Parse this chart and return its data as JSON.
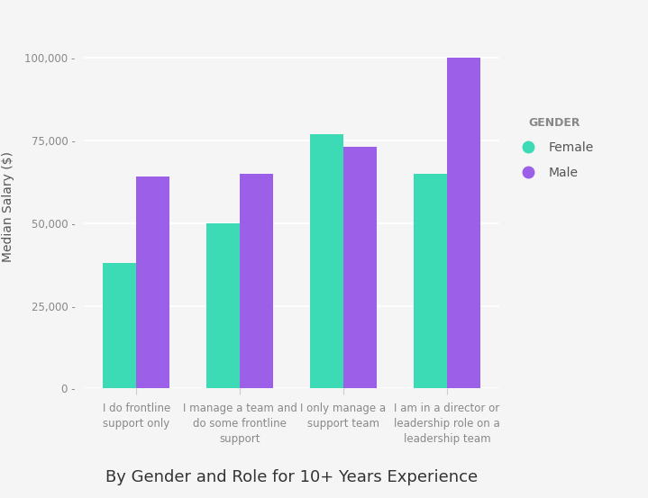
{
  "categories": [
    "I do frontline\nsupport only",
    "I manage a team and\ndo some frontline\nsupport",
    "I only manage a\nsupport team",
    "I am in a director or\nleadership role on a\nleadership team"
  ],
  "female_values": [
    38000,
    50000,
    77000,
    65000
  ],
  "male_values": [
    64000,
    65000,
    73000,
    100000
  ],
  "female_color": "#3DDBB5",
  "male_color": "#9B5FE8",
  "ylabel": "Median Salary ($)",
  "xlabel": "By Gender and Role for 10+ Years Experience",
  "legend_title": "GENDER",
  "legend_female": "Female",
  "legend_male": "Male",
  "ylim": [
    0,
    110000
  ],
  "yticks": [
    0,
    25000,
    50000,
    75000,
    100000
  ],
  "ytick_labels": [
    "0 -",
    "25,000 -",
    "50,000 -",
    "75,000 -",
    "100,000 -"
  ],
  "background_color": "#f5f5f5",
  "plot_bg_color": "#f5f5f5",
  "bar_width": 0.32,
  "grid_color": "#ffffff",
  "title_fontsize": 13,
  "axis_label_fontsize": 10,
  "tick_fontsize": 8.5,
  "legend_title_fontsize": 9,
  "legend_fontsize": 10
}
